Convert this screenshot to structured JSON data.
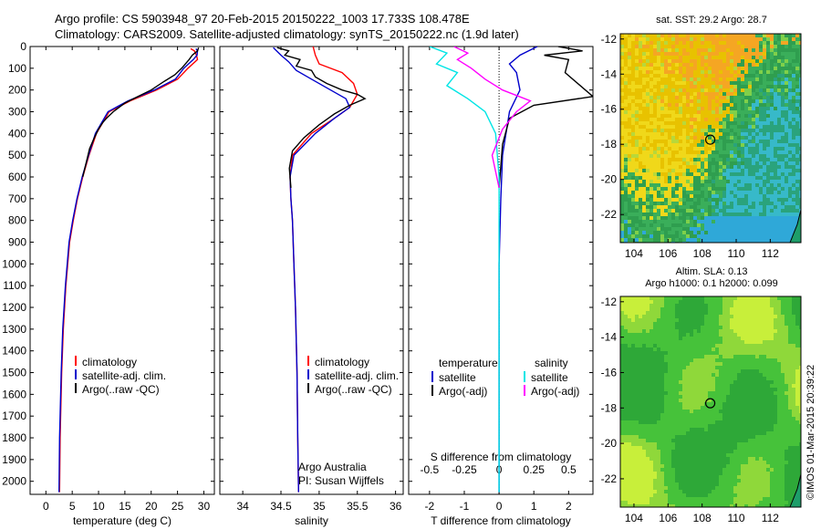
{
  "header": {
    "line1": "Argo profile: CS 5903948_97 20-Feb-2015 20150222_1003 17.733S 108.478E",
    "line2": "Climatology: CARS2009. Satellite-adjusted climatology: synTS_20150222.nc (1.9d later)"
  },
  "credit": "©IMOS 01-Mar-2015 20:39:22",
  "colors": {
    "climatology": "#ff0000",
    "satellite": "#0000cc",
    "argo": "#000000",
    "salinity_satellite": "#00e5e5",
    "salinity_argo": "#ff00ff"
  },
  "depth_axis": {
    "ticks": [
      0,
      100,
      200,
      300,
      400,
      500,
      600,
      700,
      800,
      900,
      1000,
      1100,
      1200,
      1300,
      1400,
      1500,
      1600,
      1700,
      1800,
      1900,
      2000
    ],
    "range": [
      0,
      2060
    ]
  },
  "chart_data": [
    {
      "type": "line",
      "panel": "temperature",
      "xlabel": "temperature (deg C)",
      "ylabel": "",
      "xlim": [
        -3,
        32
      ],
      "xticks": [
        0,
        5,
        10,
        15,
        20,
        25,
        30
      ],
      "ylim": [
        2060,
        0
      ],
      "legend": [
        "climatology",
        "satellite-adj. clim.",
        "Argo(..raw -QC)"
      ],
      "series": [
        {
          "name": "climatology",
          "color": "#ff0000",
          "x": [
            27.5,
            28.2,
            28.6,
            28.8,
            27.0,
            25.0,
            21.0,
            16.0,
            12.0,
            9.6,
            8.2,
            7.0,
            6.0,
            5.2,
            4.5,
            3.8,
            3.3,
            3.0,
            2.7,
            2.6
          ],
          "depth": [
            10,
            20,
            40,
            60,
            100,
            150,
            200,
            250,
            300,
            400,
            500,
            600,
            700,
            800,
            900,
            1100,
            1300,
            1500,
            1800,
            2050
          ]
        },
        {
          "name": "satellite-adj. clim.",
          "color": "#0000cc",
          "x": [
            28.5,
            28.8,
            28.7,
            28.0,
            26.2,
            24.6,
            20.6,
            15.6,
            11.8,
            9.4,
            8.1,
            6.9,
            5.9,
            5.1,
            4.4,
            3.7,
            3.2,
            2.9,
            2.6,
            2.5
          ],
          "depth": [
            10,
            20,
            40,
            60,
            100,
            150,
            200,
            250,
            300,
            400,
            500,
            600,
            700,
            800,
            900,
            1100,
            1300,
            1500,
            1800,
            2050
          ]
        },
        {
          "name": "Argo(..raw -QC)",
          "color": "#000000",
          "x": [
            29.0,
            28.8,
            27.8,
            27.2,
            25.8,
            24.5,
            22.5,
            20.0,
            17.5,
            15.0,
            12.8,
            11.5,
            10.8,
            10.0,
            9.2,
            8.3,
            7.0
          ],
          "depth": [
            5,
            20,
            40,
            60,
            100,
            130,
            160,
            200,
            230,
            260,
            300,
            330,
            350,
            380,
            420,
            470,
            600
          ]
        }
      ]
    },
    {
      "type": "line",
      "panel": "salinity",
      "xlabel": "salinity",
      "ylabel": "",
      "xlim": [
        33.7,
        36.1
      ],
      "xticks": [
        34,
        34.5,
        35,
        35.5,
        36
      ],
      "ylim": [
        2060,
        0
      ],
      "legend": [
        "climatology",
        "satellite-adj. clim.",
        "Argo(..raw -QC)"
      ],
      "series": [
        {
          "name": "climatology",
          "color": "#ff0000",
          "x": [
            34.92,
            34.95,
            35.0,
            35.3,
            35.45,
            35.5,
            35.4,
            35.2,
            34.9,
            34.65,
            34.62,
            34.63,
            34.65,
            34.67,
            34.69,
            34.71,
            34.72,
            34.73
          ],
          "depth": [
            0,
            40,
            80,
            120,
            170,
            220,
            280,
            330,
            400,
            500,
            600,
            700,
            800,
            1000,
            1200,
            1500,
            1800,
            2050
          ]
        },
        {
          "name": "satellite-adj. clim.",
          "color": "#0000cc",
          "x": [
            34.4,
            34.5,
            34.6,
            34.7,
            34.9,
            35.15,
            35.35,
            35.4,
            35.2,
            34.95,
            34.67,
            34.62,
            34.63,
            34.65,
            34.67,
            34.69,
            34.71,
            34.72,
            34.73
          ],
          "depth": [
            5,
            40,
            70,
            110,
            150,
            200,
            240,
            280,
            330,
            400,
            500,
            600,
            700,
            800,
            1000,
            1200,
            1500,
            1800,
            2050
          ]
        },
        {
          "name": "Argo(..raw -QC)",
          "color": "#000000",
          "x": [
            34.45,
            34.6,
            34.55,
            34.75,
            34.7,
            34.9,
            34.95,
            35.1,
            35.3,
            35.5,
            35.6,
            35.4,
            35.2,
            35.0,
            34.8,
            34.65,
            34.61,
            34.63
          ],
          "depth": [
            5,
            20,
            40,
            60,
            90,
            110,
            140,
            170,
            200,
            220,
            240,
            270,
            310,
            360,
            420,
            480,
            560,
            650
          ]
        }
      ]
    },
    {
      "type": "line",
      "panel": "difference",
      "xlabel": "T difference from climatology",
      "xlabel_top": "S difference from climatology",
      "xlim": [
        -2.6,
        2.7
      ],
      "xticks": [
        -2,
        -1,
        0,
        1,
        2
      ],
      "xticks_s": [
        -0.5,
        -0.25,
        0,
        0.25,
        0.5
      ],
      "ylim": [
        2060,
        0
      ],
      "legend_headers": [
        "temperature",
        "salinity"
      ],
      "legend": [
        "satellite",
        "Argo(-adj)",
        "satellite",
        "Argo(-adj)"
      ],
      "series": [
        {
          "name": "temperature satellite",
          "color": "#0000cc",
          "x": [
            1.1,
            0.6,
            0.3,
            0.5,
            0.6,
            0.3,
            0.2,
            0.1,
            0.05,
            0.0,
            0.0,
            0.0
          ],
          "depth": [
            0,
            40,
            80,
            120,
            200,
            300,
            400,
            500,
            700,
            1000,
            1500,
            2050
          ]
        },
        {
          "name": "temperature Argo(-adj)",
          "color": "#000000",
          "x": [
            1.7,
            2.4,
            1.3,
            2.0,
            1.9,
            2.7,
            1.0,
            0.3,
            0.1,
            0.0
          ],
          "depth": [
            0,
            20,
            40,
            60,
            120,
            230,
            270,
            330,
            450,
            650
          ]
        },
        {
          "name": "salinity satellite",
          "color": "#00e5e5",
          "x": [
            -2.0,
            -1.5,
            -1.8,
            -1.2,
            -1.5,
            -0.9,
            -0.4,
            -0.1,
            0.0,
            0.0,
            0.0
          ],
          "depth": [
            0,
            30,
            80,
            120,
            180,
            240,
            300,
            400,
            600,
            1000,
            2050
          ]
        },
        {
          "name": "salinity Argo(-adj)",
          "color": "#ff00ff",
          "x": [
            -1.3,
            -0.9,
            -1.2,
            -0.8,
            -0.4,
            0.1,
            0.9,
            0.5,
            0.1,
            -0.2,
            0.0
          ],
          "depth": [
            0,
            30,
            60,
            100,
            150,
            200,
            250,
            300,
            380,
            500,
            650
          ]
        }
      ]
    },
    {
      "type": "heatmap",
      "panel": "sst-map",
      "title": "sat. SST: 29.2  Argo: 28.7",
      "xticks": [
        104,
        106,
        108,
        110,
        112
      ],
      "yticks": [
        -12,
        -14,
        -16,
        -18,
        -20,
        -22
      ],
      "xlim": [
        103.2,
        113.8
      ],
      "ylim": [
        -23.6,
        -11.7
      ],
      "marker": {
        "lon": 108.478,
        "lat": -17.733
      }
    },
    {
      "type": "heatmap",
      "panel": "sla-map",
      "title": "Altim. SLA: 0.13",
      "subtitle": "Argo h1000: 0.1 h2000: 0.099",
      "xticks": [
        104,
        106,
        108,
        110,
        112
      ],
      "yticks": [
        -12,
        -14,
        -16,
        -18,
        -20,
        -22
      ],
      "xlim": [
        103.2,
        113.8
      ],
      "ylim": [
        -23.6,
        -11.7
      ],
      "marker": {
        "lon": 108.478,
        "lat": -17.733
      }
    }
  ]
}
